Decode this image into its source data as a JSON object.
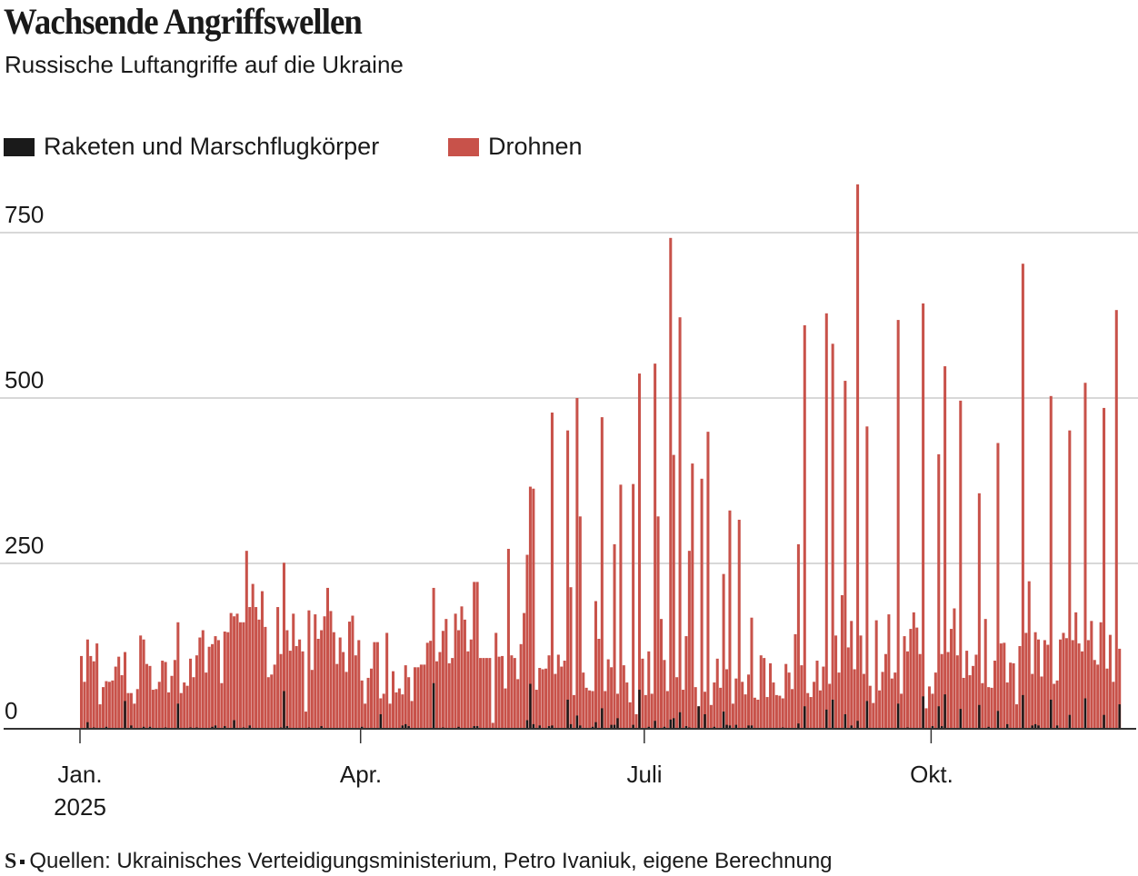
{
  "title": "Wachsende Angriffswellen",
  "subtitle": "Russische Luftangriffe auf die Ukraine",
  "footer": {
    "logo": "S",
    "source": "Quellen: Ukrainisches Verteidigungsministerium, Petro Ivaniuk, eigene Berechnung"
  },
  "colors": {
    "missiles": "#1a1a1a",
    "drones": "#c8524a",
    "grid": "#cccccc"
  },
  "chart_data": {
    "type": "bar",
    "stacked": false,
    "title": "Wachsende Angriffswellen",
    "subtitle": "Russische Luftangriffe auf die Ukraine",
    "x_start": "2025-01-01",
    "x_end": "2025-11-30",
    "x_unit": "day",
    "ylim": [
      0,
      830
    ],
    "yticks": [
      {
        "value": 0,
        "label": "0"
      },
      {
        "value": 250,
        "label": "250"
      },
      {
        "value": 500,
        "label": "500"
      },
      {
        "value": 750,
        "label": "750"
      }
    ],
    "xticks": [
      {
        "date": "2025-01-01",
        "label": "Jan.",
        "sublabel": "2025"
      },
      {
        "date": "2025-04-01",
        "label": "Apr.",
        "sublabel": ""
      },
      {
        "date": "2025-07-01",
        "label": "Juli",
        "sublabel": ""
      },
      {
        "date": "2025-10-01",
        "label": "Okt.",
        "sublabel": ""
      }
    ],
    "grid": true,
    "legend_position": "top-left",
    "series": [
      {
        "name": "Raketen und Marschflugkörper",
        "color": "#1a1a1a",
        "values": [
          0,
          0,
          10,
          0,
          2,
          0,
          0,
          0,
          3,
          0,
          0,
          0,
          0,
          0,
          42,
          0,
          5,
          0,
          0,
          0,
          3,
          0,
          3,
          0,
          0,
          0,
          0,
          2,
          0,
          0,
          0,
          38,
          0,
          0,
          0,
          2,
          0,
          2,
          0,
          0,
          0,
          0,
          3,
          5,
          0,
          0,
          4,
          0,
          0,
          13,
          0,
          0,
          2,
          0,
          5,
          0,
          0,
          0,
          0,
          0,
          0,
          0,
          0,
          0,
          2,
          57,
          4,
          0,
          0,
          0,
          0,
          0,
          0,
          2,
          0,
          0,
          0,
          4,
          0,
          0,
          0,
          0,
          0,
          0,
          0,
          0,
          0,
          0,
          0,
          0,
          3,
          0,
          0,
          0,
          0,
          0,
          22,
          0,
          0,
          0,
          0,
          0,
          0,
          5,
          7,
          4,
          0,
          0,
          0,
          0,
          0,
          0,
          0,
          69,
          0,
          0,
          2,
          0,
          0,
          0,
          0,
          3,
          0,
          0,
          0,
          0,
          4,
          4,
          0,
          0,
          0,
          0,
          0,
          0,
          0,
          0,
          0,
          0,
          0,
          0,
          0,
          0,
          0,
          13,
          68,
          7,
          0,
          5,
          0,
          0,
          4,
          5,
          0,
          0,
          0,
          0,
          44,
          7,
          0,
          20,
          5,
          0,
          0,
          0,
          3,
          10,
          0,
          31,
          0,
          0,
          6,
          6,
          16,
          0,
          0,
          0,
          0,
          6,
          0,
          59,
          0,
          0,
          3,
          0,
          12,
          0,
          0,
          3,
          0,
          14,
          16,
          0,
          25,
          0,
          4,
          2,
          0,
          0,
          34,
          0,
          22,
          0,
          0,
          3,
          0,
          0,
          26,
          6,
          5,
          0,
          6,
          0,
          0,
          0,
          5,
          5,
          0,
          0,
          0,
          0,
          0,
          0,
          0,
          0,
          0,
          2,
          0,
          0,
          0,
          0,
          8,
          0,
          34,
          0,
          0,
          0,
          0,
          0,
          0,
          29,
          0,
          44,
          0,
          0,
          0,
          22,
          0,
          5,
          0,
          12,
          0,
          0,
          42,
          0,
          0,
          0,
          0,
          0,
          0,
          0,
          0,
          0,
          38,
          0,
          0,
          2,
          0,
          0,
          0,
          0,
          49,
          0,
          0,
          4,
          0,
          34,
          4,
          52,
          0,
          0,
          0,
          0,
          30,
          0,
          0,
          0,
          0,
          0,
          36,
          0,
          0,
          3,
          0,
          0,
          27,
          0,
          0,
          7,
          0,
          0,
          0,
          0,
          51,
          0,
          0,
          5,
          7,
          5,
          0,
          0,
          0,
          44,
          0,
          5,
          0,
          0,
          0,
          21,
          0,
          0,
          0,
          0,
          46,
          0,
          0,
          0,
          0,
          0,
          21,
          0,
          0,
          0,
          0,
          37
        ]
      },
      {
        "name": "Drohnen",
        "color": "#c8524a",
        "values": [
          110,
          71,
          135,
          110,
          102,
          129,
          37,
          63,
          72,
          71,
          73,
          94,
          109,
          81,
          116,
          54,
          54,
          38,
          60,
          141,
          135,
          98,
          95,
          59,
          60,
          71,
          103,
          101,
          55,
          80,
          104,
          161,
          54,
          70,
          65,
          106,
          78,
          111,
          138,
          149,
          85,
          124,
          128,
          140,
          134,
          69,
          147,
          146,
          175,
          170,
          174,
          161,
          161,
          269,
          184,
          219,
          184,
          165,
          208,
          154,
          78,
          82,
          97,
          184,
          113,
          251,
          149,
          118,
          174,
          125,
          135,
          117,
          26,
          179,
          89,
          173,
          136,
          149,
          170,
          213,
          178,
          146,
          98,
          138,
          116,
          86,
          162,
          171,
          111,
          134,
          73,
          38,
          77,
          91,
          131,
          131,
          46,
          53,
          145,
          38,
          87,
          55,
          61,
          52,
          96,
          78,
          42,
          93,
          93,
          97,
          97,
          130,
          133,
          213,
          102,
          116,
          148,
          166,
          99,
          107,
          174,
          149,
          185,
          165,
          117,
          135,
          222,
          222,
          107,
          107,
          107,
          107,
          9,
          145,
          109,
          110,
          61,
          272,
          111,
          107,
          75,
          128,
          175,
          263,
          366,
          363,
          59,
          92,
          90,
          91,
          111,
          478,
          83,
          112,
          94,
          103,
          451,
          214,
          51,
          500,
          321,
          85,
          62,
          58,
          57,
          193,
          136,
          471,
          57,
          105,
          93,
          279,
          53,
          369,
          96,
          70,
          40,
          370,
          22,
          537,
          106,
          51,
          117,
          53,
          552,
          321,
          166,
          104,
          57,
          742,
          414,
          78,
          622,
          59,
          140,
          269,
          401,
          63,
          34,
          378,
          56,
          449,
          36,
          70,
          106,
          62,
          234,
          90,
          330,
          38,
          76,
          316,
          71,
          52,
          82,
          168,
          47,
          44,
          111,
          107,
          48,
          99,
          70,
          51,
          50,
          46,
          98,
          85,
          60,
          143,
          279,
          96,
          610,
          54,
          48,
          71,
          103,
          58,
          94,
          628,
          68,
          582,
          141,
          85,
          202,
          526,
          123,
          163,
          90,
          823,
          141,
          83,
          457,
          65,
          39,
          164,
          58,
          86,
          113,
          173,
          76,
          85,
          618,
          53,
          140,
          117,
          151,
          176,
          153,
          113,
          643,
          31,
          64,
          53,
          85,
          415,
          113,
          548,
          116,
          151,
          182,
          111,
          496,
          77,
          118,
          81,
          95,
          112,
          356,
          69,
          166,
          63,
          62,
          103,
          432,
          129,
          130,
          70,
          100,
          99,
          37,
          125,
          703,
          145,
          223,
          83,
          146,
          135,
          79,
          134,
          127,
          503,
          68,
          73,
          135,
          145,
          137,
          451,
          134,
          176,
          129,
          117,
          523,
          134,
          163,
          104,
          97,
          161,
          485,
          91,
          142,
          71,
          633,
          121
        ]
      }
    ]
  }
}
